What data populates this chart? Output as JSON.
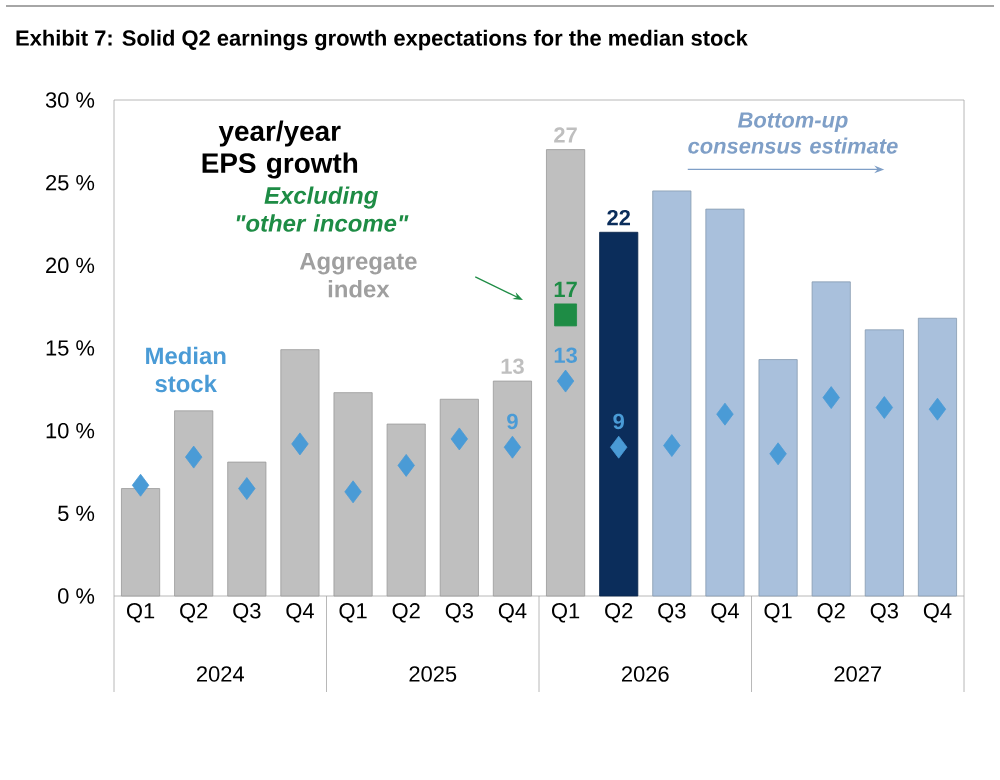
{
  "chart_data": {
    "type": "bar",
    "title": "Exhibit 7: Solid Q2 earnings growth expectations for the median stock",
    "subtitle": "year/year EPS growth",
    "categories": [
      "Q1",
      "Q2",
      "Q3",
      "Q4",
      "Q1",
      "Q2",
      "Q3",
      "Q4",
      "Q1",
      "Q2",
      "Q3",
      "Q4",
      "Q1",
      "Q2",
      "Q3",
      "Q4"
    ],
    "ylim": [
      0,
      30
    ],
    "yticks": [
      {
        "value": 0,
        "label": "0 %"
      },
      {
        "value": 5,
        "label": "5 %"
      },
      {
        "value": 10,
        "label": "10 %"
      },
      {
        "value": 15,
        "label": "15 %"
      },
      {
        "value": 20,
        "label": "20 %"
      },
      {
        "value": 25,
        "label": "25 %"
      },
      {
        "value": 30,
        "label": "30 %"
      }
    ],
    "grid": false,
    "legend": false,
    "annotations": [
      "2024",
      "2025",
      "2026",
      "2027",
      "Bottom-up consensus estimate"
    ],
    "series": [
      {
        "name": "Aggregate index",
        "colors": [
          "#bfbfbf",
          "#bfbfbf",
          "#bfbfbf",
          "#bfbfbf",
          "#bfbfbf",
          "#bfbfbf",
          "#bfbfbf",
          "#bfbfbf",
          "#bfbfbf",
          "#0b2d5b",
          "#a9c0dc",
          "#a9c0dc",
          "#a9c0dc",
          "#a9c0dc",
          "#a9c0dc",
          "#a9c0dc"
        ],
        "values": [
          6.5,
          11.2,
          8.1,
          14.9,
          12.3,
          10.4,
          11.9,
          13,
          27,
          22,
          24.5,
          23.4,
          14.3,
          19.0,
          16.1,
          16.8
        ],
        "value_labels": [
          null,
          null,
          null,
          null,
          null,
          null,
          null,
          "13",
          "27",
          "22",
          null,
          null,
          null,
          null,
          null,
          null
        ]
      },
      {
        "name": "Median stock",
        "type": "scatter",
        "marker": "diamond",
        "color": "#4a9bd6",
        "values": [
          6.7,
          8.4,
          6.5,
          9.2,
          6.3,
          7.9,
          9.5,
          9,
          13,
          9,
          9.1,
          11.0,
          8.6,
          12.0,
          11.4,
          11.3
        ],
        "value_labels": [
          null,
          null,
          null,
          null,
          null,
          null,
          null,
          "9",
          "13",
          "9",
          null,
          null,
          null,
          null,
          null,
          null
        ]
      },
      {
        "name": "Excluding \"other income\"",
        "type": "scatter",
        "marker": "square",
        "color": "#1e8c45",
        "values": [
          null,
          null,
          null,
          null,
          null,
          null,
          null,
          null,
          17,
          null,
          null,
          null,
          null,
          null,
          null,
          null
        ],
        "value_labels": [
          null,
          null,
          null,
          null,
          null,
          null,
          null,
          null,
          "17",
          null,
          null,
          null,
          null,
          null,
          null,
          null
        ]
      }
    ]
  }
}
